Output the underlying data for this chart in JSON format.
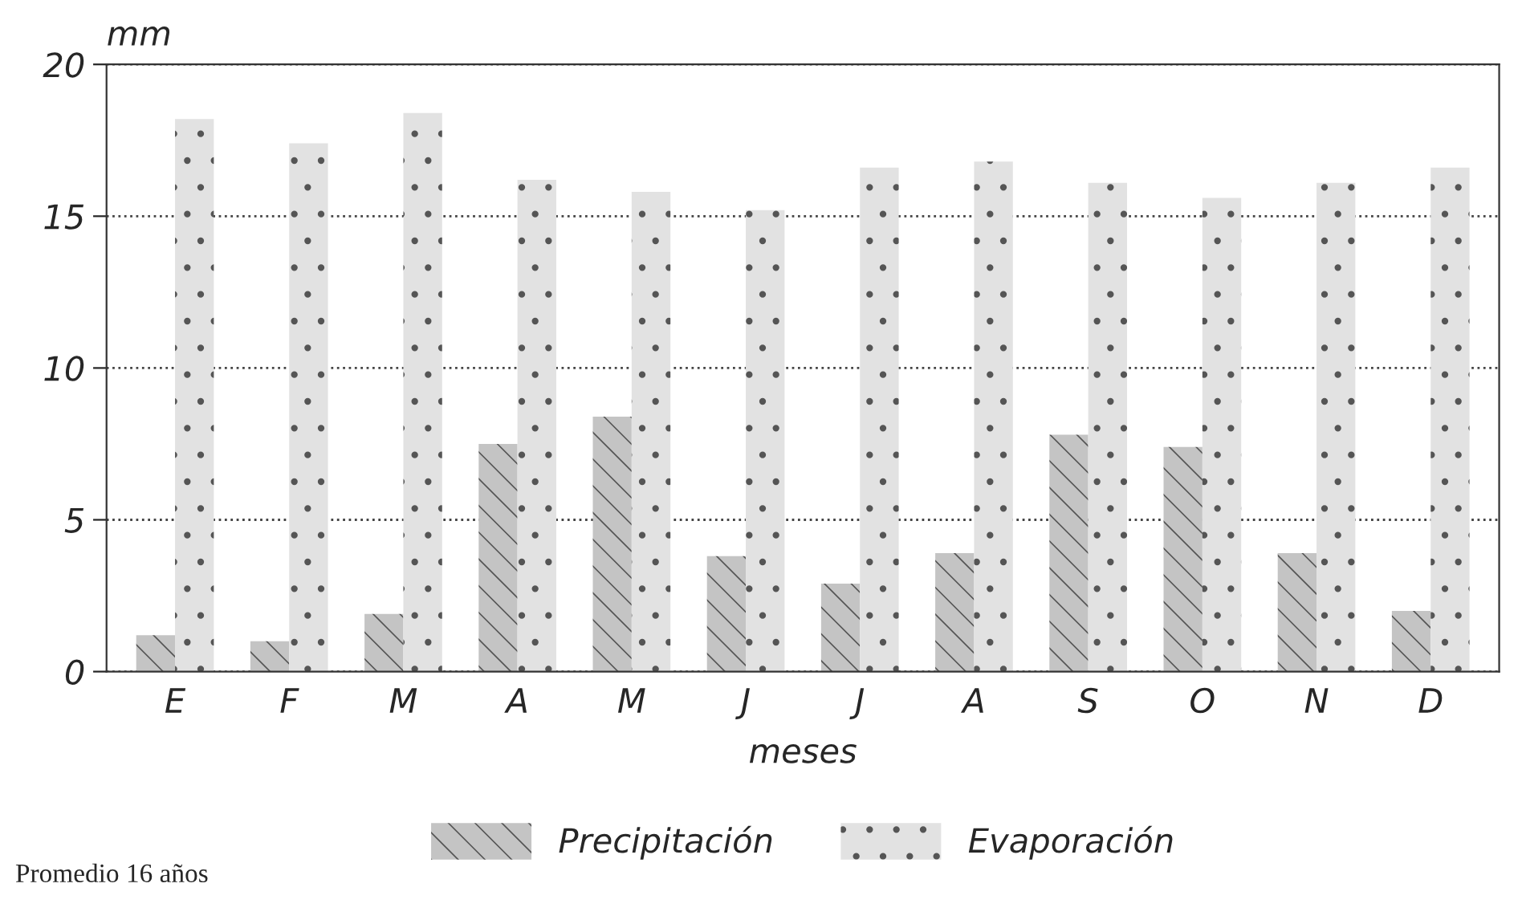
{
  "chart_data": {
    "type": "bar",
    "xlabel": "meses",
    "ylabel": "mm",
    "categories": [
      "E",
      "F",
      "M",
      "A",
      "M",
      "J",
      "J",
      "A",
      "S",
      "O",
      "N",
      "D"
    ],
    "series": [
      {
        "name": "Precipitación",
        "color": "#c4c4c4",
        "values": [
          1.2,
          1.0,
          1.9,
          7.5,
          8.4,
          3.8,
          2.9,
          3.9,
          7.8,
          7.4,
          3.9,
          2.0
        ]
      },
      {
        "name": "Evaporación",
        "color": "#e2e2e2",
        "values": [
          18.2,
          17.4,
          18.4,
          16.2,
          15.8,
          15.2,
          16.6,
          16.8,
          16.1,
          15.6,
          16.1,
          16.6
        ]
      }
    ],
    "ylim": [
      0,
      20
    ],
    "yticks": [
      0,
      5,
      10,
      15,
      20
    ],
    "grid": "y",
    "legend": "bottom",
    "annotations": [
      "Promedio 16 años"
    ]
  }
}
